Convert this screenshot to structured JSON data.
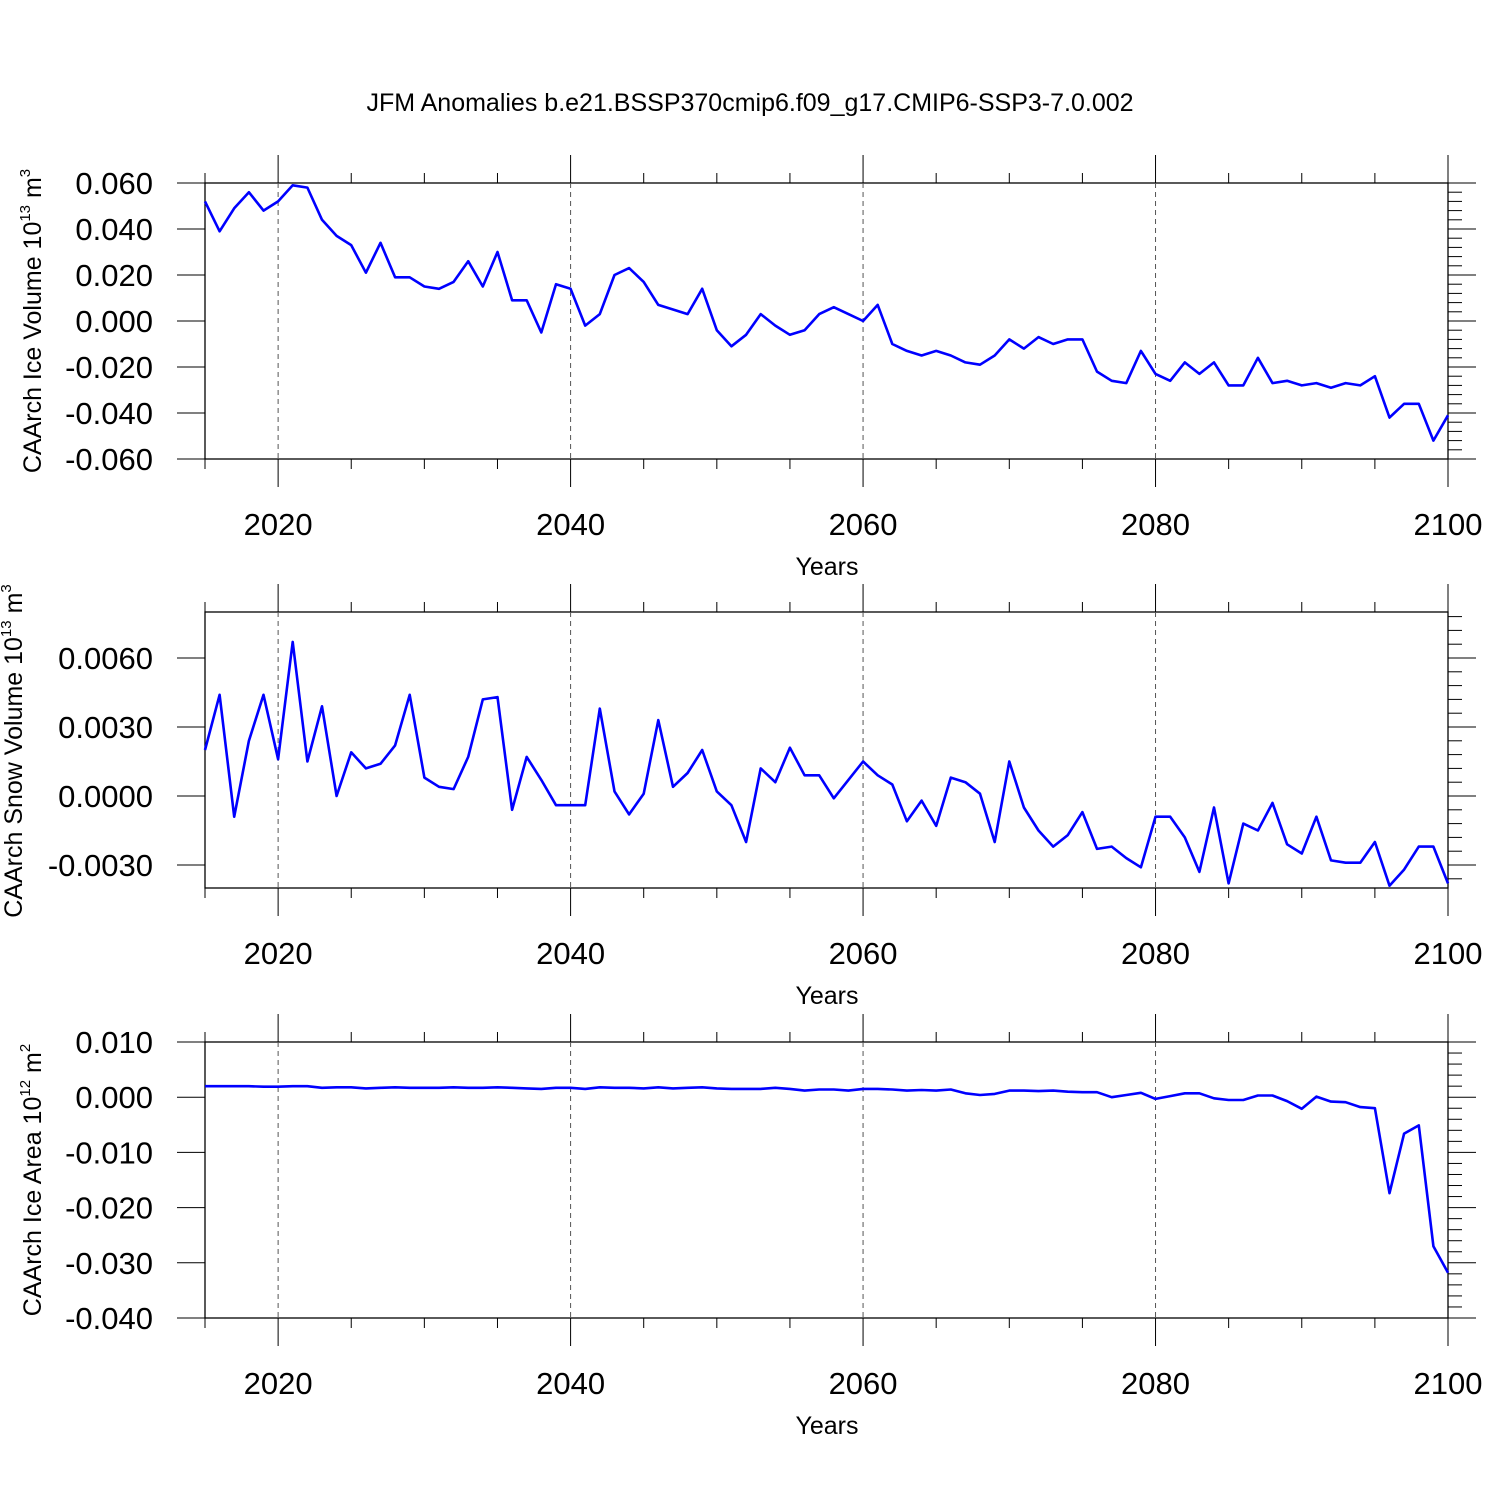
{
  "figure": {
    "title": "JFM Anomalies b.e21.BSSP370cmip6.f09_g17.CMIP6-SSP3-7.0.002"
  },
  "colors": {
    "line": "#0000ff",
    "axis": "#000000",
    "grid": "#555555"
  },
  "chart_data": [
    {
      "type": "line",
      "ylabel": "CAArch Ice Volume 10",
      "ylabel_exp": "13",
      "ylabel_unit": " m",
      "ylabel_unit_exp": "3",
      "xlabel": "Years",
      "xlim": [
        2015,
        2100
      ],
      "ylim": [
        -0.06,
        0.06
      ],
      "x_ticks": [
        "2020",
        "2040",
        "2060",
        "2080",
        "2100"
      ],
      "y_ticks": [
        "0.060",
        "0.040",
        "0.020",
        "0.000",
        "-0.020",
        "-0.040",
        "-0.060"
      ],
      "series": [
        {
          "name": "CAArch Ice Volume",
          "x_start": 2015,
          "values": [
            0.052,
            0.039,
            0.049,
            0.056,
            0.048,
            0.052,
            0.059,
            0.058,
            0.044,
            0.037,
            0.033,
            0.021,
            0.034,
            0.019,
            0.019,
            0.015,
            0.014,
            0.017,
            0.026,
            0.015,
            0.03,
            0.009,
            0.009,
            -0.005,
            0.016,
            0.014,
            -0.002,
            0.003,
            0.02,
            0.023,
            0.017,
            0.007,
            0.005,
            0.003,
            0.014,
            -0.004,
            -0.011,
            -0.006,
            0.003,
            -0.002,
            -0.006,
            -0.004,
            0.003,
            0.006,
            0.003,
            0.0,
            0.007,
            -0.01,
            -0.013,
            -0.015,
            -0.013,
            -0.015,
            -0.018,
            -0.019,
            -0.015,
            -0.008,
            -0.012,
            -0.007,
            -0.01,
            -0.008,
            -0.008,
            -0.022,
            -0.026,
            -0.027,
            -0.013,
            -0.023,
            -0.026,
            -0.018,
            -0.023,
            -0.018,
            -0.028,
            -0.028,
            -0.016,
            -0.027,
            -0.026,
            -0.028,
            -0.027,
            -0.029,
            -0.027,
            -0.028,
            -0.024,
            -0.042,
            -0.036,
            -0.036,
            -0.052,
            -0.041
          ]
        }
      ]
    },
    {
      "type": "line",
      "ylabel": "CAArch Snow Volume 10",
      "ylabel_exp": "13",
      "ylabel_unit": " m",
      "ylabel_unit_exp": "3",
      "xlabel": "Years",
      "xlim": [
        2015,
        2100
      ],
      "ylim": [
        -0.004,
        0.008
      ],
      "x_ticks": [
        "2020",
        "2040",
        "2060",
        "2080",
        "2100"
      ],
      "y_ticks": [
        "0.0060",
        "0.0030",
        "0.0000",
        "-0.0030"
      ],
      "series": [
        {
          "name": "CAArch Snow Volume",
          "x_start": 2015,
          "values": [
            0.002,
            0.0044,
            -0.0009,
            0.0024,
            0.0044,
            0.0016,
            0.0067,
            0.0015,
            0.0039,
            0.0,
            0.0019,
            0.0012,
            0.0014,
            0.0022,
            0.0044,
            0.0008,
            0.0004,
            0.0003,
            0.0017,
            0.0042,
            0.0043,
            -0.0006,
            0.0017,
            0.0007,
            -0.0004,
            -0.0004,
            -0.0004,
            0.0038,
            0.0002,
            -0.0008,
            0.0001,
            0.0033,
            0.0004,
            0.001,
            0.002,
            0.0002,
            -0.0004,
            -0.002,
            0.0012,
            0.0006,
            0.0021,
            0.0009,
            0.0009,
            -0.0001,
            0.0007,
            0.0015,
            0.0009,
            0.0005,
            -0.0011,
            -0.0002,
            -0.0013,
            0.0008,
            0.0006,
            0.0001,
            -0.002,
            0.0015,
            -0.0005,
            -0.0015,
            -0.0022,
            -0.0017,
            -0.0007,
            -0.0023,
            -0.0022,
            -0.0027,
            -0.0031,
            -0.0009,
            -0.0009,
            -0.0018,
            -0.0033,
            -0.0005,
            -0.0038,
            -0.0012,
            -0.0015,
            -0.0003,
            -0.0021,
            -0.0025,
            -0.0009,
            -0.0028,
            -0.0029,
            -0.0029,
            -0.002,
            -0.0039,
            -0.0032,
            -0.0022,
            -0.0022,
            -0.0038
          ]
        }
      ]
    },
    {
      "type": "line",
      "ylabel": "CAArch Ice Area 10",
      "ylabel_exp": "12",
      "ylabel_unit": " m",
      "ylabel_unit_exp": "2",
      "xlabel": "Years",
      "xlim": [
        2015,
        2100
      ],
      "ylim": [
        -0.04,
        0.01
      ],
      "x_ticks": [
        "2020",
        "2040",
        "2060",
        "2080",
        "2100"
      ],
      "y_ticks": [
        "0.010",
        "0.000",
        "-0.010",
        "-0.020",
        "-0.030",
        "-0.040"
      ],
      "series": [
        {
          "name": "CAArch Ice Area",
          "x_start": 2015,
          "values": [
            0.002,
            0.002,
            0.002,
            0.002,
            0.0019,
            0.0019,
            0.002,
            0.002,
            0.0017,
            0.0018,
            0.0018,
            0.0016,
            0.0017,
            0.0018,
            0.0017,
            0.0017,
            0.0017,
            0.0018,
            0.0017,
            0.0017,
            0.0018,
            0.0017,
            0.0016,
            0.0015,
            0.0017,
            0.0017,
            0.0015,
            0.0018,
            0.0017,
            0.0017,
            0.0016,
            0.0018,
            0.0016,
            0.0017,
            0.0018,
            0.0016,
            0.0015,
            0.0015,
            0.0015,
            0.0017,
            0.0015,
            0.0012,
            0.0014,
            0.0014,
            0.0012,
            0.0015,
            0.0015,
            0.0014,
            0.0012,
            0.0013,
            0.0012,
            0.0014,
            0.0007,
            0.0004,
            0.0006,
            0.0012,
            0.0012,
            0.0011,
            0.0012,
            0.001,
            0.0009,
            0.0009,
            0.0,
            0.0004,
            0.0008,
            -0.0003,
            0.0002,
            0.0007,
            0.0007,
            -0.0002,
            -0.0005,
            -0.0005,
            0.0003,
            0.0003,
            -0.0007,
            -0.0021,
            0.0001,
            -0.0008,
            -0.0009,
            -0.0018,
            -0.002,
            -0.0174,
            -0.0066,
            -0.0051,
            -0.027,
            -0.0318
          ]
        }
      ]
    }
  ]
}
